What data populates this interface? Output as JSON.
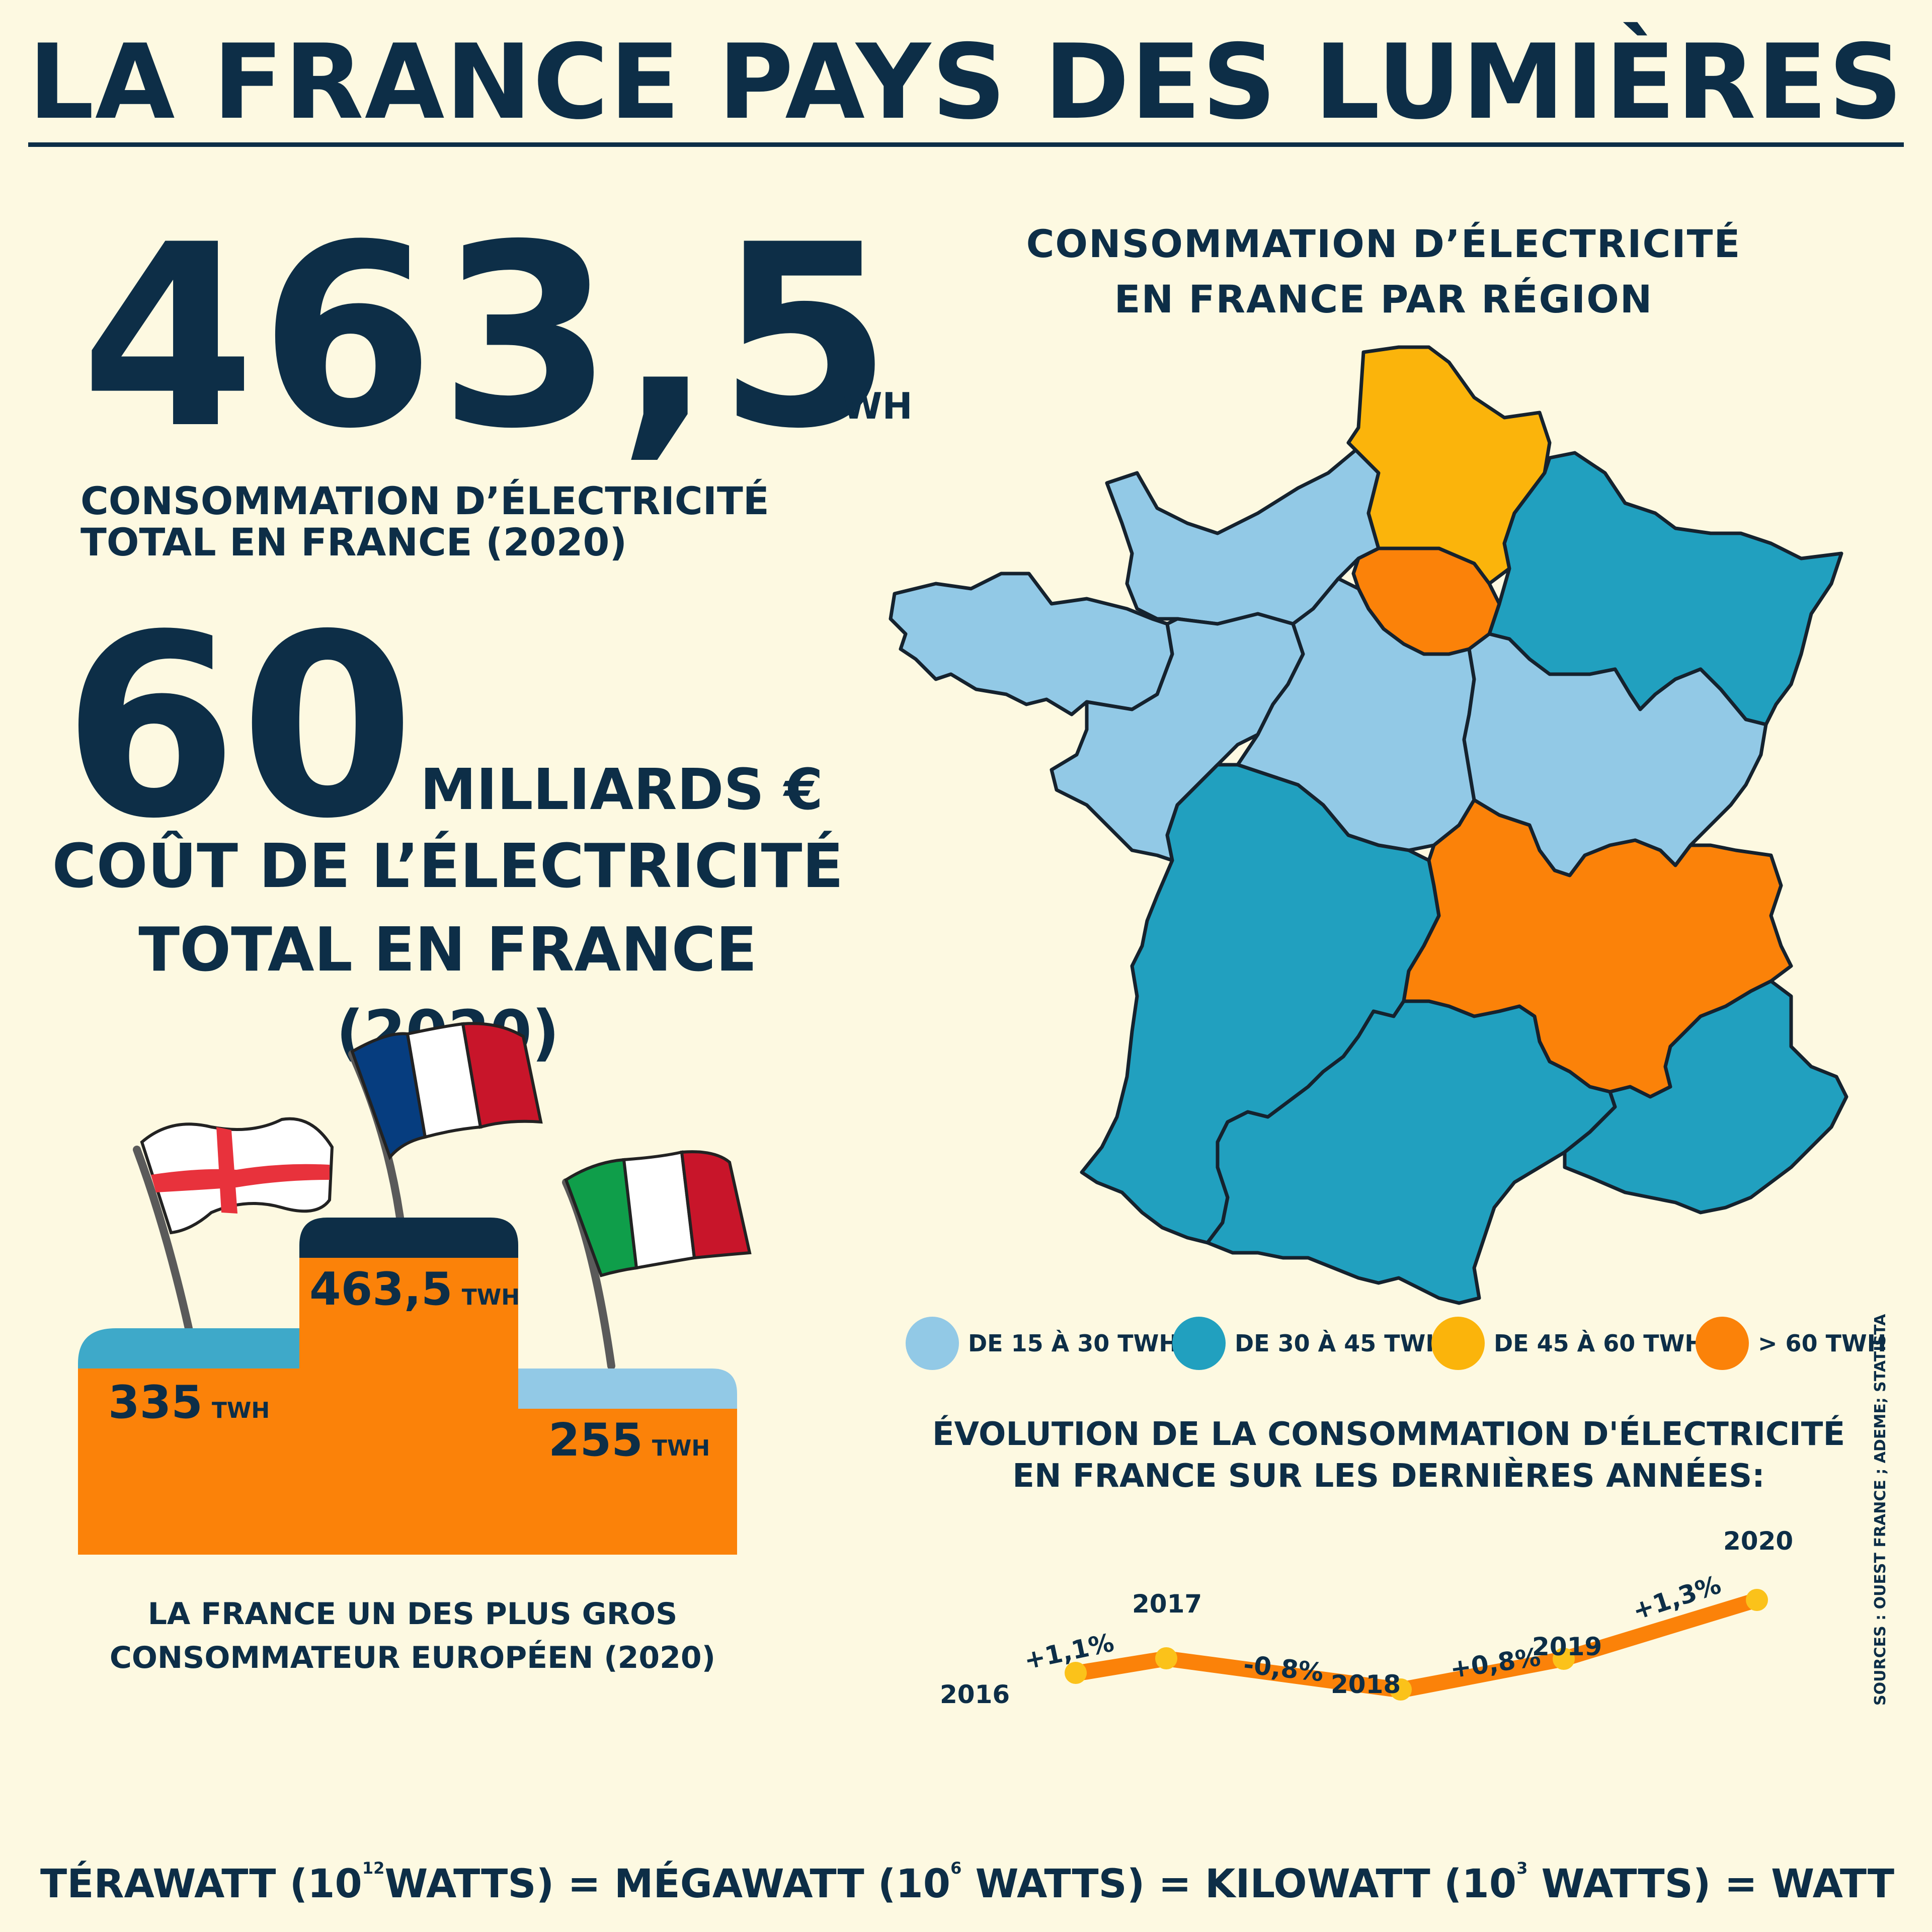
{
  "title": "LA FRANCE PAYS DES LUMIÈRES",
  "stat_consumption": {
    "value": "463,5",
    "unit": "TWH",
    "label_line1": "CONSOMMATION D’ÉLECTRICITÉ",
    "label_line2": "TOTAL EN FRANCE (2020)"
  },
  "stat_cost": {
    "value": "60",
    "unit": "MILLIARDS €",
    "label_line1": "COÛT DE L’ÉLECTRICITÉ",
    "label_line2": "TOTAL EN FRANCE (2020)"
  },
  "map": {
    "title_line1": "CONSOMMATION D’ÉLECTRICITÉ",
    "title_line2": "EN FRANCE PAR RÉGION",
    "legend": [
      {
        "label": "DE 15 À 30 TWH",
        "color": "#92c9e6"
      },
      {
        "label": "DE 30 À 45 TWH",
        "color": "#21a0bf"
      },
      {
        "label": "DE 45 À 60 TWH",
        "color": "#fbb40b"
      },
      {
        "label": "> 60 TWH",
        "color": "#fb8209"
      }
    ]
  },
  "podium": {
    "caption_line1": "LA FRANCE UN DES PLUS GROS",
    "caption_line2": "CONSOMMATEUR EUROPÉEN (2020)",
    "left": {
      "value": "335",
      "unit": "TWH",
      "flag": "england-flag"
    },
    "center": {
      "value": "463,5",
      "unit": "TWH",
      "flag": "france-flag"
    },
    "right": {
      "value": "255",
      "unit": "TWH",
      "flag": "italy-flag"
    }
  },
  "evolution": {
    "title_line1": "ÉVOLUTION DE LA CONSOMMATION D'ÉLECTRICITÉ",
    "title_line2": "EN FRANCE SUR LES DERNIÈRES ANNÉES:",
    "years": [
      "2016",
      "2017",
      "2018",
      "2019",
      "2020"
    ],
    "changes": [
      "+1,1%",
      "-0,8%",
      "+0,8%",
      "+1,3%"
    ],
    "line_color": "#fb8209",
    "point_color": "#fbc21a"
  },
  "sources": "SOURCES : OUEST FRANCE ; ADEME; STATISTA",
  "formula": {
    "t_label": "TÉRAWATT (10",
    "t_exp": "12",
    "t_rest": "WATTS) = MÉGAWATT (10",
    "m_exp": "6",
    "m_rest": " WATTS) = KILOWATT (10",
    "k_exp": "3",
    "k_rest": " WATTS) = WATT"
  }
}
